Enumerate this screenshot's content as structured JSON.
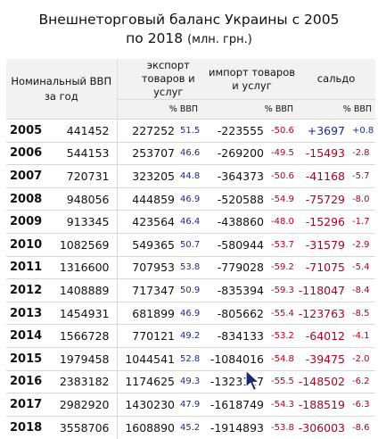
{
  "title": {
    "line1": "Внешнеторговый баланс Украины с 2005",
    "line2_main": "по 2018",
    "line2_units": "(млн. грн.)"
  },
  "header": {
    "gdp_label": "Номинальный ВВП за год",
    "export_label": "экспорт товаров и услуг",
    "import_label": "импорт товаров и услуг",
    "balance_label": "сальдо",
    "pct_label": "% ВВП"
  },
  "rows": [
    {
      "year": "2005",
      "gdp": "441452",
      "exp": "227252",
      "exp_pct": "51.5",
      "imp": "-223555",
      "imp_pct": "-50.6",
      "bal": "+3697",
      "bal_pct": "+0.8"
    },
    {
      "year": "2006",
      "gdp": "544153",
      "exp": "253707",
      "exp_pct": "46.6",
      "imp": "-269200",
      "imp_pct": "-49.5",
      "bal": "-15493",
      "bal_pct": "-2.8"
    },
    {
      "year": "2007",
      "gdp": "720731",
      "exp": "323205",
      "exp_pct": "44.8",
      "imp": "-364373",
      "imp_pct": "-50.6",
      "bal": "-41168",
      "bal_pct": "-5.7"
    },
    {
      "year": "2008",
      "gdp": "948056",
      "exp": "444859",
      "exp_pct": "46.9",
      "imp": "-520588",
      "imp_pct": "-54.9",
      "bal": "-75729",
      "bal_pct": "-8.0"
    },
    {
      "year": "2009",
      "gdp": "913345",
      "exp": "423564",
      "exp_pct": "46.4",
      "imp": "-438860",
      "imp_pct": "-48.0",
      "bal": "-15296",
      "bal_pct": "-1.7"
    },
    {
      "year": "2010",
      "gdp": "1082569",
      "exp": "549365",
      "exp_pct": "50.7",
      "imp": "-580944",
      "imp_pct": "-53.7",
      "bal": "-31579",
      "bal_pct": "-2.9"
    },
    {
      "year": "2011",
      "gdp": "1316600",
      "exp": "707953",
      "exp_pct": "53.8",
      "imp": "-779028",
      "imp_pct": "-59.2",
      "bal": "-71075",
      "bal_pct": "-5.4"
    },
    {
      "year": "2012",
      "gdp": "1408889",
      "exp": "717347",
      "exp_pct": "50.9",
      "imp": "-835394",
      "imp_pct": "-59.3",
      "bal": "-118047",
      "bal_pct": "-8.4"
    },
    {
      "year": "2013",
      "gdp": "1454931",
      "exp": "681899",
      "exp_pct": "46.9",
      "imp": "-805662",
      "imp_pct": "-55.4",
      "bal": "-123763",
      "bal_pct": "-8.5"
    },
    {
      "year": "2014",
      "gdp": "1566728",
      "exp": "770121",
      "exp_pct": "49.2",
      "imp": "-834133",
      "imp_pct": "-53.2",
      "bal": "-64012",
      "bal_pct": "-4.1"
    },
    {
      "year": "2015",
      "gdp": "1979458",
      "exp": "1044541",
      "exp_pct": "52.8",
      "imp": "-1084016",
      "imp_pct": "-54.8",
      "bal": "-39475",
      "bal_pct": "-2.0"
    },
    {
      "year": "2016",
      "gdp": "2383182",
      "exp": "1174625",
      "exp_pct": "49.3",
      "imp": "-1323127",
      "imp_pct": "-55.5",
      "bal": "-148502",
      "bal_pct": "-6.2"
    },
    {
      "year": "2017",
      "gdp": "2982920",
      "exp": "1430230",
      "exp_pct": "47.9",
      "imp": "-1618749",
      "imp_pct": "-54.3",
      "bal": "-188519",
      "bal_pct": "-6.3"
    },
    {
      "year": "2018",
      "gdp": "3558706",
      "exp": "1608890",
      "exp_pct": "45.2",
      "imp": "-1914893",
      "imp_pct": "-53.8",
      "bal": "-306003",
      "bal_pct": "-8.6"
    }
  ],
  "icons": {
    "cursor": "mouse-pointer-icon"
  },
  "colors": {
    "negative": "#b00020",
    "positive": "#1a2a8c",
    "header_bg": "#f2f2f2"
  }
}
